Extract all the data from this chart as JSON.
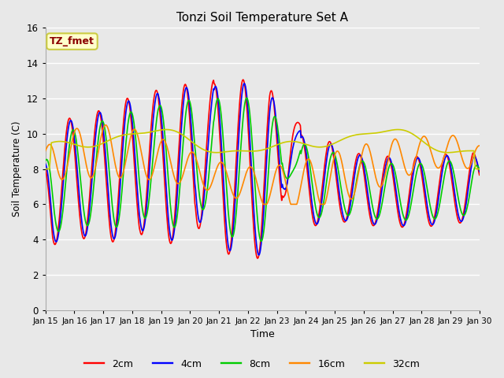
{
  "title": "Tonzi Soil Temperature Set A",
  "xlabel": "Time",
  "ylabel": "Soil Temperature (C)",
  "ylim": [
    0,
    16
  ],
  "yticks": [
    0,
    2,
    4,
    6,
    8,
    10,
    12,
    14,
    16
  ],
  "xtick_labels": [
    "Jan 15",
    "Jan 16",
    "Jan 17",
    "Jan 18",
    "Jan 19",
    "Jan 20",
    "Jan 21",
    "Jan 22",
    "Jan 23",
    "Jan 24",
    "Jan 25",
    "Jan 26",
    "Jan 27",
    "Jan 28",
    "Jan 29",
    "Jan 30"
  ],
  "annotation_text": "TZ_fmet",
  "annotation_color": "#8B0000",
  "annotation_bg": "#FFFFCC",
  "annotation_edge": "#CCCC44",
  "legend_entries": [
    "2cm",
    "4cm",
    "8cm",
    "16cm",
    "32cm"
  ],
  "colors": {
    "2cm": "#FF0000",
    "4cm": "#0000FF",
    "8cm": "#00CC00",
    "16cm": "#FF8800",
    "32cm": "#CCCC00"
  },
  "background_color": "#E8E8E8",
  "plot_bg": "#E8E8E8",
  "grid_color": "#FFFFFF",
  "linewidth": 1.2,
  "figsize": [
    6.4,
    4.8
  ],
  "dpi": 100
}
